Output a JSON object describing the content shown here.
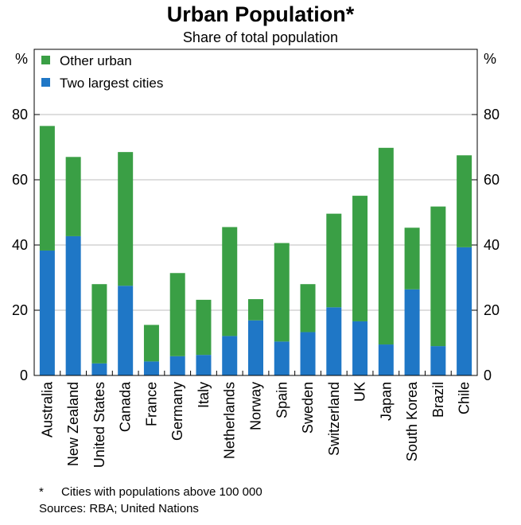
{
  "title": "Urban Population*",
  "subtitle": "Share of total population",
  "footnote_marker": "*",
  "footnote": "Cities with populations above 100 000",
  "sources": "Sources: RBA; United Nations",
  "colors": {
    "other_urban": "#3a9f45",
    "two_largest": "#1f77c6",
    "grid": "#bdbdbd",
    "axis": "#000000"
  },
  "chart_data": {
    "type": "bar",
    "stacked": true,
    "title": "Urban Population*",
    "subtitle": "Share of total population",
    "ylabel_left": "%",
    "ylabel_right": "%",
    "ylim": [
      0,
      100
    ],
    "yticks": [
      0,
      20,
      40,
      60,
      80
    ],
    "grid": true,
    "legend_position": "top-left",
    "categories": [
      "Australia",
      "New Zealand",
      "United States",
      "Canada",
      "France",
      "Germany",
      "Italy",
      "Netherlands",
      "Norway",
      "Spain",
      "Sweden",
      "Switzerland",
      "UK",
      "Japan",
      "South Korea",
      "Brazil",
      "Chile"
    ],
    "series": [
      {
        "name": "Two largest cities",
        "color": "#1f77c6",
        "values": [
          38.3,
          42.7,
          3.7,
          27.5,
          4.3,
          5.9,
          6.3,
          12.1,
          16.9,
          10.4,
          13.3,
          20.9,
          16.6,
          9.5,
          26.4,
          9.0,
          39.3
        ]
      },
      {
        "name": "Other urban",
        "color": "#3a9f45",
        "values": [
          38.2,
          24.3,
          24.3,
          41.0,
          11.2,
          25.5,
          16.9,
          33.4,
          6.5,
          30.2,
          14.7,
          28.7,
          38.5,
          60.3,
          18.9,
          42.8,
          28.2
        ]
      }
    ],
    "legend": [
      "Other urban",
      "Two largest cities"
    ]
  }
}
